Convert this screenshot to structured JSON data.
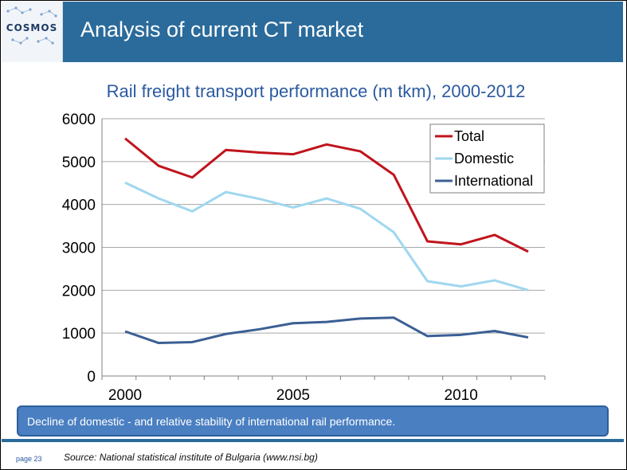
{
  "header": {
    "logo_text": "COSMOS",
    "title": "Analysis of current CT market"
  },
  "colors": {
    "header_bg": "#2b6b9b",
    "total": "#c0141c",
    "domestic": "#9fd7ef",
    "international": "#3b5f94"
  },
  "chart_data": {
    "type": "line",
    "title": "Rail freight transport performance (m tkm), 2000-2012",
    "xlabel": "",
    "ylabel": "",
    "x": [
      2000,
      2001,
      2002,
      2003,
      2004,
      2005,
      2006,
      2007,
      2008,
      2009,
      2010,
      2011,
      2012
    ],
    "xticks": [
      "2000",
      "2005",
      "2010"
    ],
    "xlim": [
      2000,
      2012
    ],
    "ylim": [
      0,
      6000
    ],
    "yticks": [
      "0",
      "1000",
      "2000",
      "3000",
      "4000",
      "5000",
      "6000"
    ],
    "grid": true,
    "legend_position": "top-right",
    "series": [
      {
        "name": "Total",
        "values": [
          5540,
          4900,
          4630,
          5270,
          5210,
          5170,
          5400,
          5240,
          4690,
          3140,
          3070,
          3290,
          2900
        ]
      },
      {
        "name": "Domestic",
        "values": [
          4510,
          4140,
          3840,
          4290,
          4130,
          3930,
          4140,
          3900,
          3350,
          2210,
          2090,
          2230,
          2000
        ]
      },
      {
        "name": "International",
        "values": [
          1040,
          770,
          790,
          980,
          1090,
          1230,
          1260,
          1340,
          1360,
          930,
          960,
          1050,
          900
        ]
      }
    ]
  },
  "callout": {
    "text": "Decline of domestic - and relative stability of international rail performance."
  },
  "footer": {
    "page": "page 23",
    "source": "Source: National statistical institute of Bulgaria (www.nsi.bg)"
  }
}
